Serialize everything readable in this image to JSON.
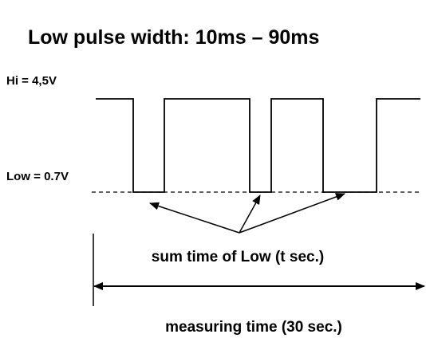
{
  "title": "Low pulse width: 10ms – 90ms",
  "levels": {
    "high": "Hi = 4,5V",
    "low": "Low = 0.7V"
  },
  "annotation": "sum time of Low (t sec.)",
  "measuring": "measuring time (30 sec.)"
}
